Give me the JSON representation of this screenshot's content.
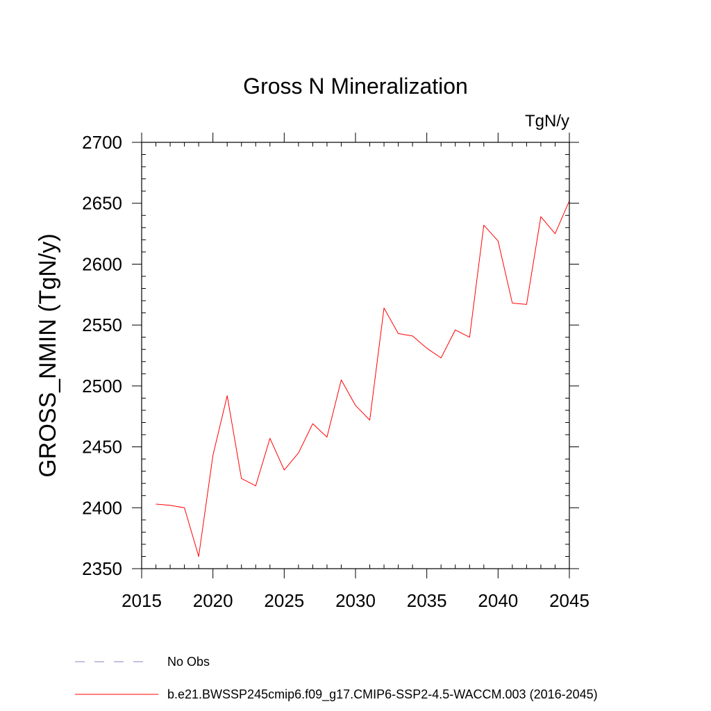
{
  "chart_data": {
    "type": "line",
    "title": "Gross N Mineralization",
    "units_label": "TgN/y",
    "ylabel": "GROSS_NMIN  (TgN/y)",
    "xlabel": "",
    "xlim": [
      2015,
      2045
    ],
    "ylim": [
      2350,
      2700
    ],
    "x_ticks": [
      2015,
      2020,
      2025,
      2030,
      2035,
      2040,
      2045
    ],
    "y_ticks": [
      2350,
      2400,
      2450,
      2500,
      2550,
      2600,
      2650,
      2700
    ],
    "y_minor_step": 10,
    "x_minor_step": 1,
    "series": [
      {
        "name": "b.e21.BWSSP245cmip6.f09_g17.CMIP6-SSP2-4.5-WACCM.003 (2016-2045)",
        "color": "#ff0000",
        "x": [
          2016,
          2017,
          2018,
          2019,
          2020,
          2021,
          2022,
          2023,
          2024,
          2025,
          2026,
          2027,
          2028,
          2029,
          2030,
          2031,
          2032,
          2033,
          2034,
          2035,
          2036,
          2037,
          2038,
          2039,
          2040,
          2041,
          2042,
          2043,
          2044,
          2045
        ],
        "values": [
          2403,
          2402,
          2400,
          2360,
          2443,
          2492,
          2424,
          2418,
          2457,
          2431,
          2445,
          2469,
          2458,
          2505,
          2484,
          2472,
          2564,
          2543,
          2541,
          2531,
          2523,
          2546,
          2540,
          2632,
          2619,
          2568,
          2567,
          2639,
          2625,
          2652
        ]
      }
    ],
    "legend": [
      {
        "label": "No Obs",
        "style": "dashed",
        "color": "#8080c0"
      },
      {
        "label": "b.e21.BWSSP245cmip6.f09_g17.CMIP6-SSP2-4.5-WACCM.003 (2016-2045)",
        "style": "solid",
        "color": "#ff0000"
      }
    ],
    "legend_position": "bottom-left",
    "grid": false
  }
}
